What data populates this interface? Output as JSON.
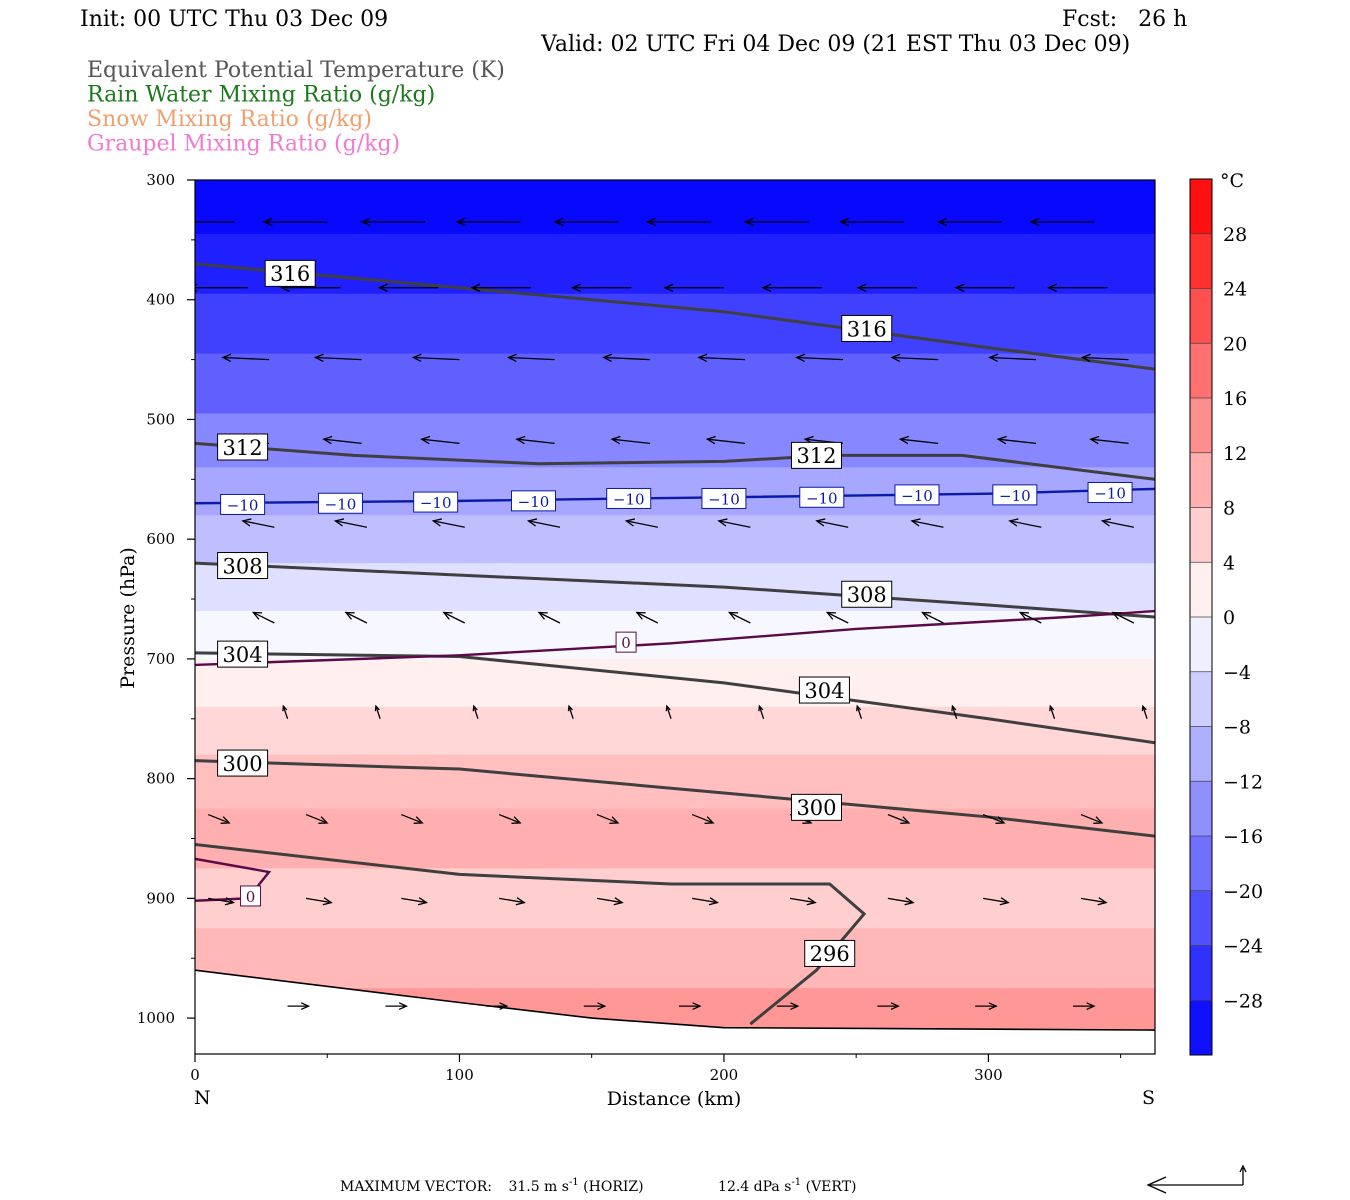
{
  "header": {
    "init": "Init: 00 UTC Thu 03 Dec 09",
    "fcst": "Fcst:   26 h",
    "valid": "Valid: 02 UTC Fri 04 Dec 09 (21 EST Thu 03 Dec 09)",
    "legend": [
      {
        "text": "Equivalent Potential Temperature (K)",
        "color": "#555555"
      },
      {
        "text": "Rain Water Mixing Ratio (g/kg)",
        "color": "#1a7a1a"
      },
      {
        "text": "Snow Mixing Ratio (g/kg)",
        "color": "#f0a070"
      },
      {
        "text": "Graupel Mixing Ratio (g/kg)",
        "color": "#f07ad0"
      }
    ]
  },
  "footer": {
    "label": "MAXIMUM VECTOR:",
    "horiz": "31.5 m s",
    "horiz_sup": "-1",
    "horiz_tag": " (HORIZ)",
    "vert": "12.4 dPa s",
    "vert_sup": "-1",
    "vert_tag": " (VERT)"
  },
  "chart_data": {
    "type": "cross-section",
    "xlabel": "Distance (km)",
    "ylabel": "Pressure (hPa)",
    "xlim": [
      0,
      363
    ],
    "ylim": [
      1030,
      300
    ],
    "x_ticks": [
      0,
      100,
      200,
      300
    ],
    "y_ticks": [
      300,
      400,
      500,
      600,
      700,
      800,
      900,
      1000
    ],
    "x_end_labels": {
      "left": "N",
      "right": "S"
    },
    "colorbar": {
      "unit": "°C",
      "ticks": [
        28,
        24,
        20,
        16,
        12,
        8,
        4,
        0,
        -4,
        -8,
        -12,
        -16,
        -20,
        -24,
        -28
      ]
    },
    "temperature_shading": [
      {
        "p": 320,
        "t": -31
      },
      {
        "p": 370,
        "t": -28
      },
      {
        "p": 420,
        "t": -24
      },
      {
        "p": 470,
        "t": -20
      },
      {
        "p": 520,
        "t": -15
      },
      {
        "p": 560,
        "t": -11
      },
      {
        "p": 600,
        "t": -8
      },
      {
        "p": 640,
        "t": -4
      },
      {
        "p": 680,
        "t": -1
      },
      {
        "p": 720,
        "t": 2
      },
      {
        "p": 760,
        "t": 5
      },
      {
        "p": 800,
        "t": 8
      },
      {
        "p": 850,
        "t": 10
      },
      {
        "p": 900,
        "t": 6
      },
      {
        "p": 950,
        "t": 9
      },
      {
        "p": 1000,
        "t": 13
      },
      {
        "p": 1030,
        "t": 14
      }
    ],
    "theta_e_contours": [
      {
        "value": 316,
        "points": [
          [
            0,
            370
          ],
          [
            100,
            390
          ],
          [
            200,
            410
          ],
          [
            300,
            440
          ],
          [
            363,
            458
          ]
        ],
        "labels": [
          [
            36,
            378
          ],
          [
            254,
            424
          ]
        ]
      },
      {
        "value": 312,
        "points": [
          [
            0,
            520
          ],
          [
            60,
            530
          ],
          [
            130,
            537
          ],
          [
            200,
            535
          ],
          [
            240,
            530
          ],
          [
            290,
            530
          ],
          [
            363,
            550
          ]
        ],
        "labels": [
          [
            18,
            523
          ],
          [
            235,
            530
          ]
        ]
      },
      {
        "value": 308,
        "points": [
          [
            0,
            620
          ],
          [
            100,
            630
          ],
          [
            200,
            640
          ],
          [
            300,
            655
          ],
          [
            363,
            665
          ]
        ],
        "labels": [
          [
            18,
            622
          ],
          [
            254,
            646
          ]
        ]
      },
      {
        "value": 304,
        "points": [
          [
            0,
            695
          ],
          [
            100,
            698
          ],
          [
            200,
            720
          ],
          [
            300,
            750
          ],
          [
            363,
            770
          ]
        ],
        "labels": [
          [
            18,
            696
          ],
          [
            238,
            726
          ]
        ]
      },
      {
        "value": 300,
        "points": [
          [
            0,
            785
          ],
          [
            100,
            792
          ],
          [
            200,
            812
          ],
          [
            300,
            832
          ],
          [
            363,
            848
          ]
        ],
        "labels": [
          [
            18,
            787
          ],
          [
            235,
            824
          ]
        ]
      },
      {
        "value": 296,
        "points": [
          [
            0,
            855
          ],
          [
            100,
            880
          ],
          [
            180,
            888
          ],
          [
            240,
            888
          ],
          [
            253,
            913
          ],
          [
            235,
            960
          ],
          [
            210,
            1005
          ]
        ],
        "labels": [
          [
            240,
            946
          ]
        ]
      }
    ],
    "temperature_contours": [
      {
        "value": -10,
        "color": "#0a1aa8",
        "points": [
          [
            0,
            570
          ],
          [
            100,
            568
          ],
          [
            200,
            565
          ],
          [
            300,
            562
          ],
          [
            363,
            558
          ]
        ],
        "labels": [
          [
            18,
            571
          ],
          [
            55,
            570
          ],
          [
            91,
            569
          ],
          [
            128,
            568
          ],
          [
            164,
            566
          ],
          [
            200,
            566
          ],
          [
            237,
            565
          ],
          [
            273,
            563
          ],
          [
            310,
            563
          ],
          [
            346,
            561
          ]
        ]
      },
      {
        "value": 0,
        "color": "#5a0a4a",
        "points": [
          [
            0,
            705
          ],
          [
            100,
            697
          ],
          [
            180,
            687
          ],
          [
            250,
            675
          ],
          [
            330,
            665
          ],
          [
            363,
            660
          ]
        ],
        "labels": [
          [
            163,
            686
          ]
        ]
      },
      {
        "value": 0,
        "color": "#5a0a4a",
        "points": [
          [
            0,
            867
          ],
          [
            28,
            878
          ],
          [
            20,
            900
          ],
          [
            0,
            902
          ]
        ],
        "labels": [
          [
            21,
            898
          ]
        ]
      }
    ],
    "ground_line": [
      [
        0,
        960
      ],
      [
        100,
        987
      ],
      [
        150,
        1000
      ],
      [
        200,
        1008
      ],
      [
        363,
        1010
      ]
    ],
    "wind_vectors": [
      {
        "p": 335,
        "x": [
          15,
          50,
          87,
          123,
          160,
          195,
          232,
          268,
          305,
          340
        ],
        "u": -30,
        "w": 0
      },
      {
        "p": 390,
        "x": [
          20,
          55,
          92,
          127,
          165,
          200,
          237,
          273,
          310,
          345
        ],
        "u": -28,
        "w": 0
      },
      {
        "p": 450,
        "x": [
          28,
          63,
          100,
          136,
          172,
          208,
          245,
          281,
          318,
          353
        ],
        "u": -22,
        "w": 1
      },
      {
        "p": 520,
        "x": [
          28,
          63,
          100,
          136,
          172,
          208,
          245,
          281,
          318,
          353
        ],
        "u": -18,
        "w": 2
      },
      {
        "p": 590,
        "x": [
          30,
          65,
          102,
          138,
          175,
          210,
          247,
          283,
          320,
          355
        ],
        "u": -15,
        "w": 3
      },
      {
        "p": 670,
        "x": [
          30,
          65,
          102,
          138,
          175,
          210,
          247,
          283,
          320,
          355
        ],
        "u": -10,
        "w": 5
      },
      {
        "p": 750,
        "x": [
          35,
          70,
          107,
          143,
          180,
          215,
          252,
          288,
          325,
          360
        ],
        "u": -2,
        "w": 6
      },
      {
        "p": 830,
        "x": [
          5,
          42,
          78,
          115,
          152,
          188,
          225,
          262,
          298,
          335
        ],
        "u": 10,
        "w": -4
      },
      {
        "p": 900,
        "x": [
          5,
          42,
          78,
          115,
          152,
          188,
          225,
          262,
          298,
          335
        ],
        "u": 12,
        "w": -2
      },
      {
        "p": 990,
        "x": [
          35,
          72,
          110,
          147,
          183,
          220,
          258,
          295,
          332
        ],
        "u": 10,
        "w": 0
      }
    ]
  }
}
